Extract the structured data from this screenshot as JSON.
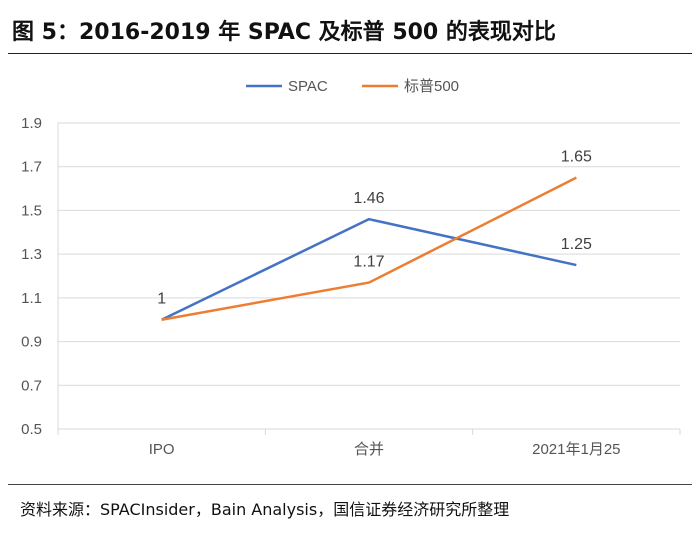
{
  "header": {
    "title": "图 5：2016-2019 年 SPAC 及标普 500 的表现对比"
  },
  "footer": {
    "source": "资料来源：SPACInsider，Bain Analysis，国信证券经济研究所整理"
  },
  "chart_data": {
    "type": "line",
    "title": "",
    "xlabel": "",
    "ylabel": "",
    "categories": [
      "IPO",
      "合并",
      "2021年1月25"
    ],
    "ylim": [
      0.5,
      1.9
    ],
    "yticks": [
      "0.5",
      "0.7",
      "0.9",
      "1.1",
      "1.3",
      "1.5",
      "1.7",
      "1.9"
    ],
    "grid": true,
    "legend_position": "top-center",
    "series": [
      {
        "name": "SPAC",
        "color": "#4472C4",
        "values": [
          1,
          1.46,
          1.25
        ],
        "labels": [
          "1",
          "1.46",
          "1.25"
        ]
      },
      {
        "name": "标普500",
        "color": "#ED7D31",
        "values": [
          1,
          1.17,
          1.65
        ],
        "labels": [
          "",
          "1.17",
          "1.65"
        ]
      }
    ]
  }
}
